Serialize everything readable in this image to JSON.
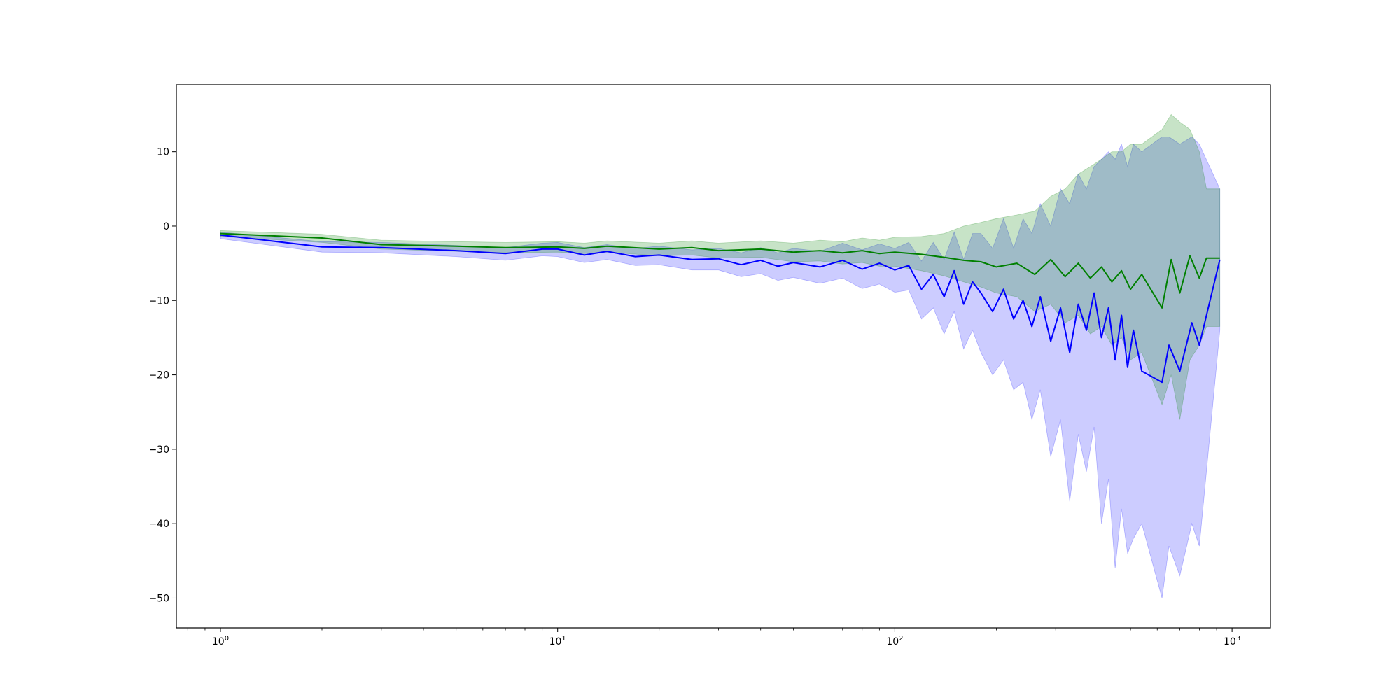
{
  "chart_data": {
    "type": "line",
    "title": "",
    "xlabel": "",
    "ylabel": "",
    "x_scale": "log",
    "xlim": [
      0.74,
      1300
    ],
    "ylim": [
      -54,
      19
    ],
    "grid": false,
    "legend": "none",
    "x_ticks": [
      {
        "value": 1,
        "base": "10",
        "exp": "0"
      },
      {
        "value": 10,
        "base": "10",
        "exp": "1"
      },
      {
        "value": 100,
        "base": "10",
        "exp": "2"
      },
      {
        "value": 1000,
        "base": "10",
        "exp": "3"
      }
    ],
    "y_ticks": [
      {
        "value": 10,
        "label": "10"
      },
      {
        "value": 0,
        "label": "0"
      },
      {
        "value": -10,
        "label": "−10"
      },
      {
        "value": -20,
        "label": "−20"
      },
      {
        "value": -30,
        "label": "−30"
      },
      {
        "value": -40,
        "label": "−40"
      },
      {
        "value": -50,
        "label": "−50"
      }
    ],
    "series": [
      {
        "color": "#0000ff",
        "band_color": "#0000ff",
        "band_opacity": 0.2,
        "points": [
          {
            "x": 1,
            "y": -1.2,
            "lo": -1.7,
            "hi": -0.8
          },
          {
            "x": 2,
            "y": -2.8,
            "lo": -3.5,
            "hi": -2.1
          },
          {
            "x": 3,
            "y": -2.9,
            "lo": -3.6,
            "hi": -2.2
          },
          {
            "x": 5,
            "y": -3.3,
            "lo": -4.1,
            "hi": -2.6
          },
          {
            "x": 7,
            "y": -3.7,
            "lo": -4.6,
            "hi": -2.9
          },
          {
            "x": 9,
            "y": -3.1,
            "lo": -4.0,
            "hi": -2.3
          },
          {
            "x": 10,
            "y": -3.1,
            "lo": -4.1,
            "hi": -2.2
          },
          {
            "x": 12,
            "y": -3.9,
            "lo": -4.9,
            "hi": -2.9
          },
          {
            "x": 14,
            "y": -3.4,
            "lo": -4.5,
            "hi": -2.5
          },
          {
            "x": 17,
            "y": -4.1,
            "lo": -5.3,
            "hi": -3.0
          },
          {
            "x": 20,
            "y": -3.9,
            "lo": -5.2,
            "hi": -2.7
          },
          {
            "x": 25,
            "y": -4.5,
            "lo": -5.9,
            "hi": -3.2
          },
          {
            "x": 30,
            "y": -4.4,
            "lo": -5.9,
            "hi": -3.0
          },
          {
            "x": 35,
            "y": -5.2,
            "lo": -6.8,
            "hi": -3.6
          },
          {
            "x": 40,
            "y": -4.6,
            "lo": -6.4,
            "hi": -2.9
          },
          {
            "x": 45,
            "y": -5.4,
            "lo": -7.3,
            "hi": -3.6
          },
          {
            "x": 50,
            "y": -4.9,
            "lo": -6.9,
            "hi": -3.0
          },
          {
            "x": 60,
            "y": -5.5,
            "lo": -7.7,
            "hi": -3.4
          },
          {
            "x": 70,
            "y": -4.6,
            "lo": -7.0,
            "hi": -2.3
          },
          {
            "x": 80,
            "y": -5.8,
            "lo": -8.4,
            "hi": -3.2
          },
          {
            "x": 90,
            "y": -5.0,
            "lo": -7.8,
            "hi": -2.4
          },
          {
            "x": 100,
            "y": -5.9,
            "lo": -8.9,
            "hi": -3.0
          },
          {
            "x": 110,
            "y": -5.3,
            "lo": -8.6,
            "hi": -2.2
          },
          {
            "x": 120,
            "y": -8.5,
            "lo": -12.5,
            "hi": -4.7
          },
          {
            "x": 130,
            "y": -6.5,
            "lo": -11.0,
            "hi": -2.2
          },
          {
            "x": 140,
            "y": -9.5,
            "lo": -14.5,
            "hi": -4.5
          },
          {
            "x": 150,
            "y": -6.0,
            "lo": -11.5,
            "hi": -0.8
          },
          {
            "x": 160,
            "y": -10.5,
            "lo": -16.5,
            "hi": -4.5
          },
          {
            "x": 170,
            "y": -7.5,
            "lo": -14.0,
            "hi": -1.0
          },
          {
            "x": 180,
            "y": -9.0,
            "lo": -17.0,
            "hi": -1.0
          },
          {
            "x": 195,
            "y": -11.5,
            "lo": -20.0,
            "hi": -3.0
          },
          {
            "x": 210,
            "y": -8.5,
            "lo": -18.0,
            "hi": 1.0
          },
          {
            "x": 225,
            "y": -12.5,
            "lo": -22.0,
            "hi": -3.0
          },
          {
            "x": 240,
            "y": -10.0,
            "lo": -21.0,
            "hi": 1.0
          },
          {
            "x": 255,
            "y": -13.5,
            "lo": -26.0,
            "hi": -1.0
          },
          {
            "x": 270,
            "y": -9.5,
            "lo": -22.0,
            "hi": 3.0
          },
          {
            "x": 290,
            "y": -15.5,
            "lo": -31.0,
            "hi": 0.0
          },
          {
            "x": 310,
            "y": -11.0,
            "lo": -26.0,
            "hi": 5.0
          },
          {
            "x": 330,
            "y": -17.0,
            "lo": -37.0,
            "hi": 3.0
          },
          {
            "x": 350,
            "y": -10.5,
            "lo": -28.0,
            "hi": 7.0
          },
          {
            "x": 370,
            "y": -14.0,
            "lo": -33.0,
            "hi": 5.0
          },
          {
            "x": 390,
            "y": -9.0,
            "lo": -27.0,
            "hi": 8.0
          },
          {
            "x": 410,
            "y": -15.0,
            "lo": -40.0,
            "hi": 9.0
          },
          {
            "x": 430,
            "y": -11.0,
            "lo": -34.0,
            "hi": 10.0
          },
          {
            "x": 450,
            "y": -18.0,
            "lo": -46.0,
            "hi": 9.0
          },
          {
            "x": 470,
            "y": -12.0,
            "lo": -38.0,
            "hi": 11.0
          },
          {
            "x": 490,
            "y": -19.0,
            "lo": -44.0,
            "hi": 8.0
          },
          {
            "x": 510,
            "y": -14.0,
            "lo": -42.0,
            "hi": 11.0
          },
          {
            "x": 540,
            "y": -19.5,
            "lo": -40.0,
            "hi": 10.0
          },
          {
            "x": 620,
            "y": -21.0,
            "lo": -50.0,
            "hi": 12.0
          },
          {
            "x": 650,
            "y": -16.0,
            "lo": -43.0,
            "hi": 12.0
          },
          {
            "x": 700,
            "y": -19.5,
            "lo": -47.0,
            "hi": 11.0
          },
          {
            "x": 760,
            "y": -13.0,
            "lo": -40.0,
            "hi": 12.0
          },
          {
            "x": 800,
            "y": -16.0,
            "lo": -43.0,
            "hi": 11.0
          },
          {
            "x": 920,
            "y": -4.5,
            "lo": -14.0,
            "hi": 5.0
          }
        ]
      },
      {
        "color": "#008000",
        "band_color": "#008000",
        "band_opacity": 0.22,
        "points": [
          {
            "x": 1,
            "y": -1.0,
            "lo": -1.4,
            "hi": -0.6
          },
          {
            "x": 2,
            "y": -1.6,
            "lo": -2.2,
            "hi": -1.1
          },
          {
            "x": 3,
            "y": -2.5,
            "lo": -3.1,
            "hi": -1.9
          },
          {
            "x": 5,
            "y": -2.7,
            "lo": -3.4,
            "hi": -2.1
          },
          {
            "x": 7,
            "y": -2.9,
            "lo": -3.6,
            "hi": -2.2
          },
          {
            "x": 10,
            "y": -2.8,
            "lo": -3.5,
            "hi": -2.1
          },
          {
            "x": 12,
            "y": -3.0,
            "lo": -3.7,
            "hi": -2.3
          },
          {
            "x": 14,
            "y": -2.7,
            "lo": -3.5,
            "hi": -2.0
          },
          {
            "x": 20,
            "y": -3.1,
            "lo": -4.0,
            "hi": -2.3
          },
          {
            "x": 25,
            "y": -2.9,
            "lo": -3.9,
            "hi": -2.0
          },
          {
            "x": 30,
            "y": -3.3,
            "lo": -4.3,
            "hi": -2.3
          },
          {
            "x": 40,
            "y": -3.1,
            "lo": -4.2,
            "hi": -2.0
          },
          {
            "x": 50,
            "y": -3.5,
            "lo": -4.8,
            "hi": -2.3
          },
          {
            "x": 60,
            "y": -3.3,
            "lo": -4.7,
            "hi": -1.9
          },
          {
            "x": 70,
            "y": -3.6,
            "lo": -5.1,
            "hi": -2.1
          },
          {
            "x": 80,
            "y": -3.3,
            "lo": -4.9,
            "hi": -1.6
          },
          {
            "x": 90,
            "y": -3.7,
            "lo": -5.4,
            "hi": -1.9
          },
          {
            "x": 100,
            "y": -3.5,
            "lo": -5.4,
            "hi": -1.5
          },
          {
            "x": 120,
            "y": -3.8,
            "lo": -6.0,
            "hi": -1.4
          },
          {
            "x": 140,
            "y": -4.2,
            "lo": -6.7,
            "hi": -1.0
          },
          {
            "x": 160,
            "y": -4.6,
            "lo": -7.5,
            "hi": 0.0
          },
          {
            "x": 180,
            "y": -4.8,
            "lo": -8.2,
            "hi": 0.5
          },
          {
            "x": 200,
            "y": -5.5,
            "lo": -9.0,
            "hi": 1.0
          },
          {
            "x": 230,
            "y": -5.0,
            "lo": -9.5,
            "hi": 1.5
          },
          {
            "x": 260,
            "y": -6.5,
            "lo": -11.5,
            "hi": 2.0
          },
          {
            "x": 290,
            "y": -4.5,
            "lo": -10.5,
            "hi": 4.0
          },
          {
            "x": 320,
            "y": -6.8,
            "lo": -13.0,
            "hi": 5.0
          },
          {
            "x": 350,
            "y": -5.0,
            "lo": -12.0,
            "hi": 7.0
          },
          {
            "x": 380,
            "y": -7.0,
            "lo": -14.5,
            "hi": 8.0
          },
          {
            "x": 410,
            "y": -5.5,
            "lo": -13.5,
            "hi": 9.0
          },
          {
            "x": 440,
            "y": -7.5,
            "lo": -16.0,
            "hi": 10.0
          },
          {
            "x": 470,
            "y": -6.0,
            "lo": -15.0,
            "hi": 10.0
          },
          {
            "x": 500,
            "y": -8.5,
            "lo": -18.0,
            "hi": 11.0
          },
          {
            "x": 540,
            "y": -6.5,
            "lo": -17.0,
            "hi": 11.0
          },
          {
            "x": 620,
            "y": -11.0,
            "lo": -24.0,
            "hi": 13.0
          },
          {
            "x": 660,
            "y": -4.5,
            "lo": -20.0,
            "hi": 15.0
          },
          {
            "x": 700,
            "y": -9.0,
            "lo": -26.0,
            "hi": 14.0
          },
          {
            "x": 750,
            "y": -4.0,
            "lo": -18.0,
            "hi": 13.0
          },
          {
            "x": 800,
            "y": -7.0,
            "lo": -16.0,
            "hi": 10.0
          },
          {
            "x": 840,
            "y": -4.3,
            "lo": -13.5,
            "hi": 5.0
          },
          {
            "x": 920,
            "y": -4.3,
            "lo": -13.5,
            "hi": 5.0
          }
        ]
      }
    ]
  }
}
